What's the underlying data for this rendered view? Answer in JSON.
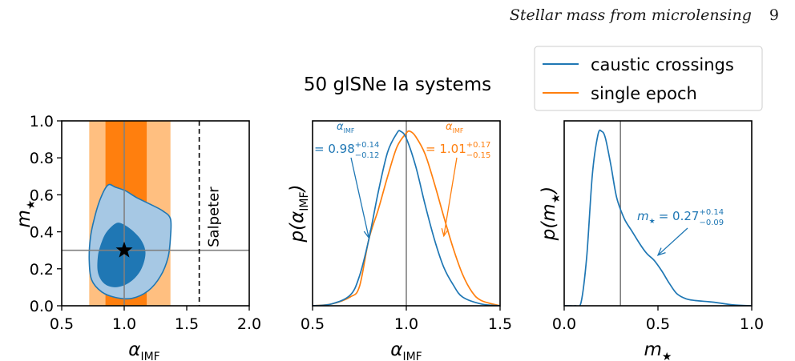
{
  "header": {
    "running_title": "Stellar mass from microlensing",
    "page_number": "9"
  },
  "figure": {
    "title": "50 glSNe Ia systems",
    "colors": {
      "blue": "#1f77b4",
      "orange": "#ff7f0e",
      "light_orange": "#ffbf80",
      "light_blue": "#a6c8e4",
      "dark_blue": "#1f77b4",
      "grey": "#808080"
    },
    "legend": {
      "position": "top-right",
      "entries": [
        {
          "label": "caustic crossings",
          "color": "#1f77b4"
        },
        {
          "label": "single epoch",
          "color": "#ff7f0e"
        }
      ]
    }
  },
  "chart_data": [
    {
      "type": "contour",
      "xlabel": "α_IMF",
      "ylabel": "m★",
      "xlim": [
        0.5,
        2.0
      ],
      "ylim": [
        0.0,
        1.0
      ],
      "xticks": [
        "0.5",
        "1.0",
        "1.5",
        "2.0"
      ],
      "yticks": [
        "0.0",
        "0.2",
        "0.4",
        "0.6",
        "0.8",
        "1.0"
      ],
      "truth": {
        "alpha": 1.0,
        "mstar": 0.3
      },
      "bands": {
        "inner": [
          0.85,
          1.18
        ],
        "outer": [
          0.72,
          1.37
        ]
      },
      "salpeter": {
        "alpha": 1.6,
        "label": "Salpeter"
      },
      "contour_outer": [
        [
          0.87,
          0.653
        ],
        [
          0.93,
          0.641
        ],
        [
          1.01,
          0.622
        ],
        [
          1.1,
          0.585
        ],
        [
          1.22,
          0.545
        ],
        [
          1.31,
          0.512
        ],
        [
          1.37,
          0.47
        ],
        [
          1.37,
          0.37
        ],
        [
          1.35,
          0.26
        ],
        [
          1.29,
          0.16
        ],
        [
          1.19,
          0.08
        ],
        [
          1.06,
          0.04
        ],
        [
          0.93,
          0.045
        ],
        [
          0.82,
          0.075
        ],
        [
          0.74,
          0.14
        ],
        [
          0.72,
          0.25
        ],
        [
          0.73,
          0.37
        ],
        [
          0.76,
          0.47
        ],
        [
          0.81,
          0.58
        ]
      ],
      "contour_inner": [
        [
          0.86,
          0.4
        ],
        [
          0.93,
          0.445
        ],
        [
          0.98,
          0.445
        ],
        [
          1.06,
          0.41
        ],
        [
          1.14,
          0.35
        ],
        [
          1.17,
          0.28
        ],
        [
          1.13,
          0.19
        ],
        [
          1.04,
          0.125
        ],
        [
          0.93,
          0.1
        ],
        [
          0.84,
          0.12
        ],
        [
          0.79,
          0.18
        ],
        [
          0.79,
          0.27
        ],
        [
          0.82,
          0.345
        ]
      ]
    },
    {
      "type": "line",
      "xlabel": "α_IMF",
      "ylabel": "p(α_IMF)",
      "xlim": [
        0.5,
        1.5
      ],
      "ylim": [
        0,
        1.06
      ],
      "xticks": [
        "0.5",
        "1.0",
        "1.5"
      ],
      "truth": 1.0,
      "series": [
        {
          "name": "caustic crossings",
          "color": "#1f77b4",
          "mean": 0.98,
          "sigma": 0.13,
          "x": [
            0.5,
            0.6,
            0.7,
            0.75,
            0.8,
            0.85,
            0.9,
            0.95,
            0.97,
            1.0,
            1.05,
            1.1,
            1.15,
            1.2,
            1.25,
            1.3,
            1.4,
            1.5
          ],
          "y": [
            0.0,
            0.01,
            0.06,
            0.17,
            0.38,
            0.65,
            0.88,
            0.99,
            1.0,
            0.96,
            0.8,
            0.58,
            0.38,
            0.22,
            0.12,
            0.05,
            0.01,
            0.0
          ]
        },
        {
          "name": "single epoch",
          "color": "#ff7f0e",
          "mean": 1.01,
          "sigma": 0.16,
          "x": [
            0.5,
            0.6,
            0.7,
            0.75,
            0.8,
            0.85,
            0.9,
            0.95,
            1.0,
            1.02,
            1.05,
            1.1,
            1.15,
            1.2,
            1.25,
            1.3,
            1.35,
            1.4,
            1.5
          ],
          "y": [
            0.0,
            0.01,
            0.05,
            0.11,
            0.38,
            0.55,
            0.74,
            0.91,
            0.99,
            1.0,
            0.97,
            0.87,
            0.7,
            0.51,
            0.33,
            0.18,
            0.08,
            0.03,
            0.0
          ]
        }
      ],
      "annotations": [
        {
          "series": "caustic crossings",
          "label": "α_IMF",
          "value": "= 0.98",
          "plus": "+0.14",
          "minus": "−0.12",
          "arrow_to": [
            0.8,
            0.39
          ]
        },
        {
          "series": "single epoch",
          "label": "α_IMF",
          "value": "= 1.01",
          "plus": "+0.17",
          "minus": "−0.15",
          "arrow_to": [
            1.2,
            0.4
          ]
        }
      ]
    },
    {
      "type": "line",
      "xlabel": "m★",
      "ylabel": "p(m★)",
      "xlim": [
        0.0,
        1.0
      ],
      "ylim": [
        0,
        1.06
      ],
      "xticks": [
        "0.0",
        "0.5",
        "1.0"
      ],
      "truth": 0.3,
      "series": [
        {
          "name": "caustic crossings",
          "color": "#1f77b4",
          "x": [
            0.0,
            0.03,
            0.06,
            0.09,
            0.12,
            0.15,
            0.18,
            0.2,
            0.22,
            0.25,
            0.28,
            0.32,
            0.36,
            0.4,
            0.44,
            0.48,
            0.52,
            0.56,
            0.6,
            0.65,
            0.7,
            0.8,
            0.9,
            1.0
          ],
          "y": [
            0.0,
            0.0,
            0.0,
            0.02,
            0.28,
            0.75,
            0.98,
            1.0,
            0.96,
            0.8,
            0.62,
            0.5,
            0.43,
            0.36,
            0.3,
            0.26,
            0.2,
            0.13,
            0.07,
            0.04,
            0.03,
            0.02,
            0.005,
            0.0
          ]
        }
      ],
      "annotations": [
        {
          "label": "m★",
          "value": "= 0.27",
          "plus": "+0.14",
          "minus": "−0.09",
          "arrow_to": [
            0.5,
            0.29
          ]
        }
      ]
    }
  ]
}
